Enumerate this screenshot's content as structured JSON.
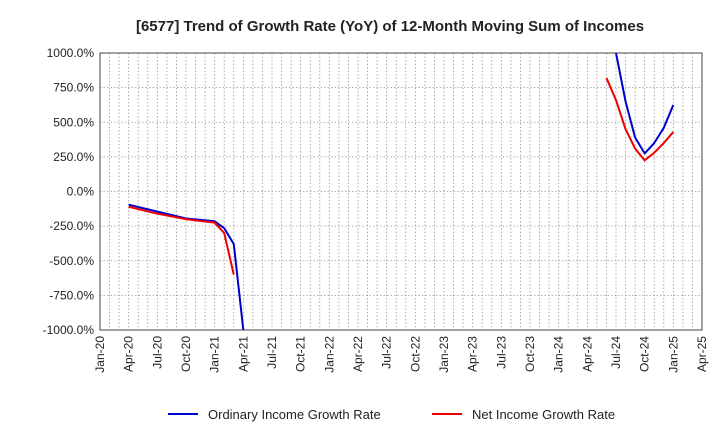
{
  "chart_data": {
    "type": "line",
    "title": "[6577]  Trend of Growth Rate (YoY) of 12-Month Moving Sum of Incomes",
    "xlabel": "",
    "ylabel": "",
    "x_ticks": [
      "Jan-20",
      "Apr-20",
      "Jul-20",
      "Oct-20",
      "Jan-21",
      "Apr-21",
      "Jul-21",
      "Oct-21",
      "Jan-22",
      "Apr-22",
      "Jul-22",
      "Oct-22",
      "Jan-23",
      "Apr-23",
      "Jul-23",
      "Oct-23",
      "Jan-24",
      "Apr-24",
      "Jul-24",
      "Oct-24",
      "Jan-25",
      "Apr-25"
    ],
    "y_ticks": [
      "1000.0%",
      "750.0%",
      "500.0%",
      "250.0%",
      "0.0%",
      "-250.0%",
      "-500.0%",
      "-750.0%",
      "-1000.0%"
    ],
    "ylim": [
      -1000,
      1000
    ],
    "grid": true,
    "legend_position": "bottom",
    "series": [
      {
        "name": "Ordinary Income Growth Rate",
        "color": "#0000cc",
        "points": [
          {
            "x": "Apr-20",
            "y": -95
          },
          {
            "x": "Jul-20",
            "y": -145
          },
          {
            "x": "Oct-20",
            "y": -195
          },
          {
            "x": "Jan-21",
            "y": -215
          },
          {
            "x": "Feb-21",
            "y": -265
          },
          {
            "x": "Mar-21",
            "y": -380
          },
          {
            "x": "Apr-21",
            "y": -1000
          }
        ],
        "points_2": [
          {
            "x": "Jul-24",
            "y": 1000
          },
          {
            "x": "Aug-24",
            "y": 650
          },
          {
            "x": "Sep-24",
            "y": 390
          },
          {
            "x": "Oct-24",
            "y": 275
          },
          {
            "x": "Nov-24",
            "y": 350
          },
          {
            "x": "Dec-24",
            "y": 460
          },
          {
            "x": "Jan-25",
            "y": 625
          }
        ]
      },
      {
        "name": "Net Income Growth Rate",
        "color": "#ee0000",
        "points": [
          {
            "x": "Apr-20",
            "y": -110
          },
          {
            "x": "Jul-20",
            "y": -160
          },
          {
            "x": "Oct-20",
            "y": -200
          },
          {
            "x": "Jan-21",
            "y": -225
          },
          {
            "x": "Feb-21",
            "y": -300
          },
          {
            "x": "Mar-21",
            "y": -600
          }
        ],
        "points_2": [
          {
            "x": "Jun-24",
            "y": 820
          },
          {
            "x": "Jul-24",
            "y": 660
          },
          {
            "x": "Aug-24",
            "y": 450
          },
          {
            "x": "Sep-24",
            "y": 310
          },
          {
            "x": "Oct-24",
            "y": 225
          },
          {
            "x": "Nov-24",
            "y": 280
          },
          {
            "x": "Dec-24",
            "y": 350
          },
          {
            "x": "Jan-25",
            "y": 430
          }
        ]
      }
    ]
  }
}
